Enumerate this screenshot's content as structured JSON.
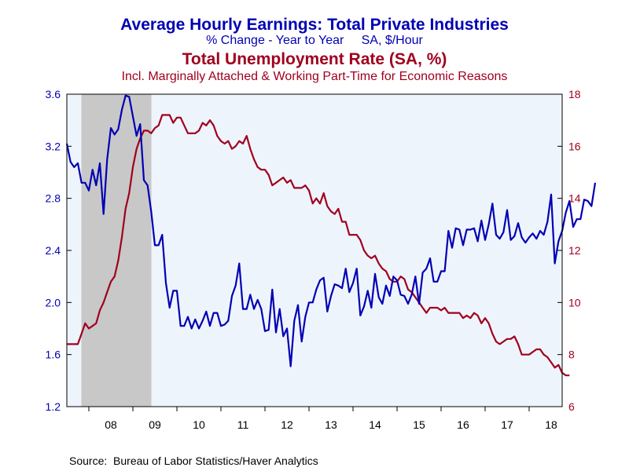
{
  "chart_data": {
    "type": "line",
    "title": "Average Hourly Earnings: Total Private Industries",
    "subtitle": "% Change - Year to Year     SA, $/Hour",
    "title2": "Total Unemployment Rate (SA, %)",
    "subtitle2": "Incl. Marginally Attached & Working Part-Time for Economic Reasons",
    "source": "Source:  Bureau of Labor Statistics/Haver Analytics",
    "colors": {
      "earnings": "#0000b4",
      "unemployment": "#a0001e",
      "plot_bg": "#eef4fc",
      "recession": "#c8c8c8"
    },
    "x_axis": {
      "start": 2007.5,
      "end": 2018.75,
      "tick_labels": [
        "08",
        "09",
        "10",
        "11",
        "12",
        "13",
        "14",
        "15",
        "16",
        "17",
        "18"
      ],
      "tick_years": [
        2008,
        2009,
        2010,
        2011,
        2012,
        2013,
        2014,
        2015,
        2016,
        2017,
        2018
      ]
    },
    "y_left": {
      "min": 1.2,
      "max": 3.6,
      "ticks": [
        "3.6",
        "3.2",
        "2.8",
        "2.4",
        "2.0",
        "1.6",
        "1.2"
      ]
    },
    "y_right": {
      "min": 6,
      "max": 18,
      "ticks": [
        "18",
        "16",
        "14",
        "12",
        "10",
        "8",
        "6"
      ]
    },
    "recession": {
      "start": 2007.83,
      "end": 2009.42
    },
    "series": [
      {
        "name": "Average Hourly Earnings: Total Private Industries",
        "axis": "left",
        "x_start": 2007.5,
        "step": 0.08333,
        "values": [
          3.22,
          3.08,
          3.04,
          3.07,
          2.92,
          2.92,
          2.86,
          3.02,
          2.9,
          3.07,
          2.68,
          3.1,
          3.34,
          3.29,
          3.33,
          3.48,
          3.59,
          3.58,
          3.43,
          3.28,
          3.37,
          2.94,
          2.9,
          2.7,
          2.44,
          2.44,
          2.52,
          2.15,
          1.96,
          2.09,
          2.09,
          1.82,
          1.82,
          1.89,
          1.8,
          1.87,
          1.8,
          1.86,
          1.93,
          1.82,
          1.92,
          1.92,
          1.82,
          1.83,
          1.86,
          2.05,
          2.13,
          2.3,
          1.95,
          1.95,
          2.06,
          1.95,
          2.02,
          1.95,
          1.78,
          1.79,
          2.1,
          1.77,
          1.95,
          1.74,
          1.8,
          1.51,
          1.86,
          1.98,
          1.7,
          1.89,
          2.0,
          2.0,
          2.1,
          2.17,
          2.19,
          1.93,
          2.05,
          2.14,
          2.13,
          2.11,
          2.26,
          2.08,
          2.15,
          2.26,
          1.9,
          1.97,
          2.09,
          1.96,
          2.22,
          2.04,
          1.99,
          2.13,
          2.05,
          2.2,
          2.17,
          2.06,
          2.05,
          1.99,
          2.06,
          2.2,
          1.99,
          2.23,
          2.26,
          2.34,
          2.16,
          2.16,
          2.24,
          2.24,
          2.55,
          2.42,
          2.57,
          2.56,
          2.44,
          2.56,
          2.56,
          2.57,
          2.47,
          2.63,
          2.48,
          2.6,
          2.76,
          2.52,
          2.49,
          2.54,
          2.71,
          2.48,
          2.51,
          2.61,
          2.5,
          2.46,
          2.5,
          2.53,
          2.49,
          2.55,
          2.52,
          2.62,
          2.83,
          2.3,
          2.47,
          2.55,
          2.69,
          2.78,
          2.58,
          2.64,
          2.64,
          2.79,
          2.78,
          2.74,
          2.92
        ]
      },
      {
        "name": "Total Unemployment Rate (SA, %)",
        "axis": "right",
        "x_start": 2007.5,
        "step": 0.08333,
        "values": [
          8.4,
          8.4,
          8.4,
          8.4,
          8.8,
          9.2,
          9.0,
          9.1,
          9.2,
          9.7,
          10.0,
          10.4,
          10.8,
          11.0,
          11.6,
          12.5,
          13.6,
          14.2,
          15.2,
          15.9,
          16.3,
          16.6,
          16.6,
          16.5,
          16.7,
          16.8,
          17.2,
          17.2,
          17.2,
          16.9,
          17.1,
          17.1,
          16.8,
          16.5,
          16.5,
          16.5,
          16.6,
          16.9,
          16.8,
          17.0,
          16.8,
          16.4,
          16.2,
          16.1,
          16.2,
          15.9,
          16.0,
          16.2,
          16.1,
          16.4,
          15.9,
          15.5,
          15.2,
          15.1,
          15.1,
          14.9,
          14.5,
          14.6,
          14.7,
          14.8,
          14.6,
          14.7,
          14.4,
          14.4,
          14.4,
          14.5,
          14.3,
          13.8,
          14.0,
          13.8,
          14.2,
          13.7,
          13.5,
          13.4,
          13.6,
          13.1,
          13.1,
          12.6,
          12.6,
          12.6,
          12.4,
          12.0,
          11.8,
          11.7,
          11.8,
          11.5,
          11.3,
          11.2,
          10.9,
          10.8,
          10.8,
          11.0,
          10.9,
          10.5,
          10.4,
          10.2,
          10.0,
          9.8,
          9.6,
          9.8,
          9.8,
          9.8,
          9.7,
          9.8,
          9.6,
          9.6,
          9.6,
          9.6,
          9.4,
          9.5,
          9.4,
          9.6,
          9.5,
          9.2,
          9.4,
          9.2,
          8.8,
          8.5,
          8.4,
          8.5,
          8.6,
          8.6,
          8.7,
          8.4,
          8.0,
          8.0,
          8.0,
          8.1,
          8.2,
          8.2,
          8.0,
          7.9,
          7.7,
          7.5,
          7.6,
          7.3,
          7.2,
          7.2
        ]
      }
    ]
  }
}
